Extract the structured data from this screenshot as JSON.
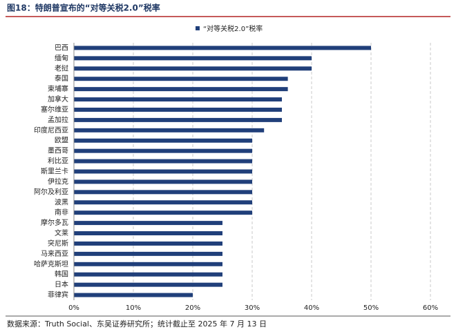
{
  "chart_data": {
    "type": "hbar",
    "title": "图18：特朗普宣布的“对等关税2.0”税率",
    "source": "数据来源：Truth Social、东吴证券研究所；统计截止至 2025 年 7 月 13 日",
    "categories": [
      "巴西",
      "缅甸",
      "老挝",
      "泰国",
      "柬埔寨",
      "加拿大",
      "塞尔维亚",
      "孟加拉",
      "印度尼西亚",
      "欧盟",
      "墨西哥",
      "利比亚",
      "斯里兰卡",
      "伊拉克",
      "阿尔及利亚",
      "波黑",
      "南非",
      "摩尔多瓦",
      "文莱",
      "突尼斯",
      "马来西亚",
      "哈萨克斯坦",
      "韩国",
      "日本",
      "菲律宾"
    ],
    "series": [
      {
        "name": "“对等关税2.0”税率",
        "color": "#203f7a",
        "values": [
          50,
          40,
          40,
          36,
          36,
          35,
          35,
          35,
          32,
          30,
          30,
          30,
          30,
          30,
          30,
          30,
          30,
          25,
          25,
          25,
          25,
          25,
          25,
          25,
          20
        ]
      }
    ],
    "xlim": [
      0,
      60
    ],
    "xticks": [
      {
        "value": 0,
        "label": "0%"
      },
      {
        "value": 10,
        "label": "10%"
      },
      {
        "value": 20,
        "label": "20%"
      },
      {
        "value": 30,
        "label": "30%"
      },
      {
        "value": 40,
        "label": "40%"
      },
      {
        "value": 50,
        "label": "50%"
      },
      {
        "value": 60,
        "label": "60%"
      }
    ],
    "grid": true,
    "legend": "top"
  }
}
